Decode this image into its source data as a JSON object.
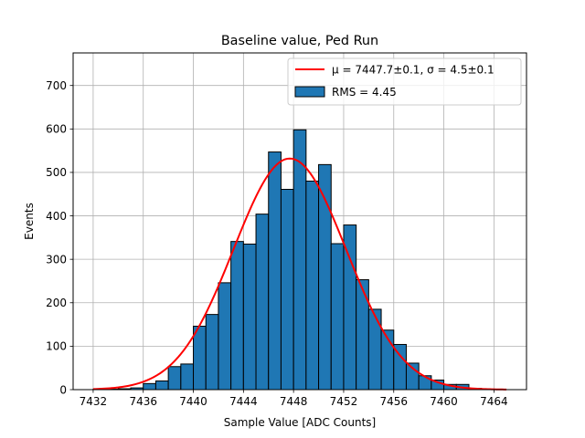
{
  "chart_data": {
    "type": "bar",
    "title": "Baseline value, Ped Run",
    "xlabel": "Sample Value [ADC Counts]",
    "ylabel": "Events",
    "xlim": [
      7430.4,
      7466.6
    ],
    "ylim": [
      0,
      775
    ],
    "xticks": [
      7432,
      7436,
      7440,
      7444,
      7448,
      7452,
      7456,
      7460,
      7464
    ],
    "yticks": [
      0,
      100,
      200,
      300,
      400,
      500,
      600,
      700
    ],
    "grid": true,
    "bin_width": 1.0,
    "bins": [
      {
        "left": 7432.0,
        "count": 1
      },
      {
        "left": 7433.0,
        "count": 1
      },
      {
        "left": 7434.0,
        "count": 2
      },
      {
        "left": 7435.0,
        "count": 4
      },
      {
        "left": 7436.0,
        "count": 14
      },
      {
        "left": 7437.0,
        "count": 20
      },
      {
        "left": 7438.0,
        "count": 53
      },
      {
        "left": 7439.0,
        "count": 59
      },
      {
        "left": 7440.0,
        "count": 146
      },
      {
        "left": 7441.0,
        "count": 173
      },
      {
        "left": 7442.0,
        "count": 246
      },
      {
        "left": 7443.0,
        "count": 341
      },
      {
        "left": 7444.0,
        "count": 335
      },
      {
        "left": 7445.0,
        "count": 404
      },
      {
        "left": 7446.0,
        "count": 547
      },
      {
        "left": 7447.0,
        "count": 461
      },
      {
        "left": 7448.0,
        "count": 598
      },
      {
        "left": 7449.0,
        "count": 480
      },
      {
        "left": 7450.0,
        "count": 518
      },
      {
        "left": 7451.0,
        "count": 336
      },
      {
        "left": 7452.0,
        "count": 379
      },
      {
        "left": 7453.0,
        "count": 253
      },
      {
        "left": 7454.0,
        "count": 185
      },
      {
        "left": 7455.0,
        "count": 137
      },
      {
        "left": 7456.0,
        "count": 104
      },
      {
        "left": 7457.0,
        "count": 61
      },
      {
        "left": 7458.0,
        "count": 32
      },
      {
        "left": 7459.0,
        "count": 22
      },
      {
        "left": 7460.0,
        "count": 12
      },
      {
        "left": 7461.0,
        "count": 12
      },
      {
        "left": 7462.0,
        "count": 3
      },
      {
        "left": 7463.0,
        "count": 1
      }
    ],
    "bar_color": "#1f77b4",
    "bar_edge_color": "#000000",
    "fit": {
      "type": "gaussian",
      "mu": 7447.7,
      "sigma": 4.5,
      "amplitude": 532,
      "x_range": [
        7432,
        7465
      ],
      "color": "#ff0000"
    },
    "legend": {
      "position": "upper-right",
      "entries": [
        {
          "kind": "line",
          "label": "μ = 7447.7±0.1, σ = 4.5±0.1"
        },
        {
          "kind": "patch",
          "label": "RMS = 4.45"
        }
      ]
    }
  }
}
